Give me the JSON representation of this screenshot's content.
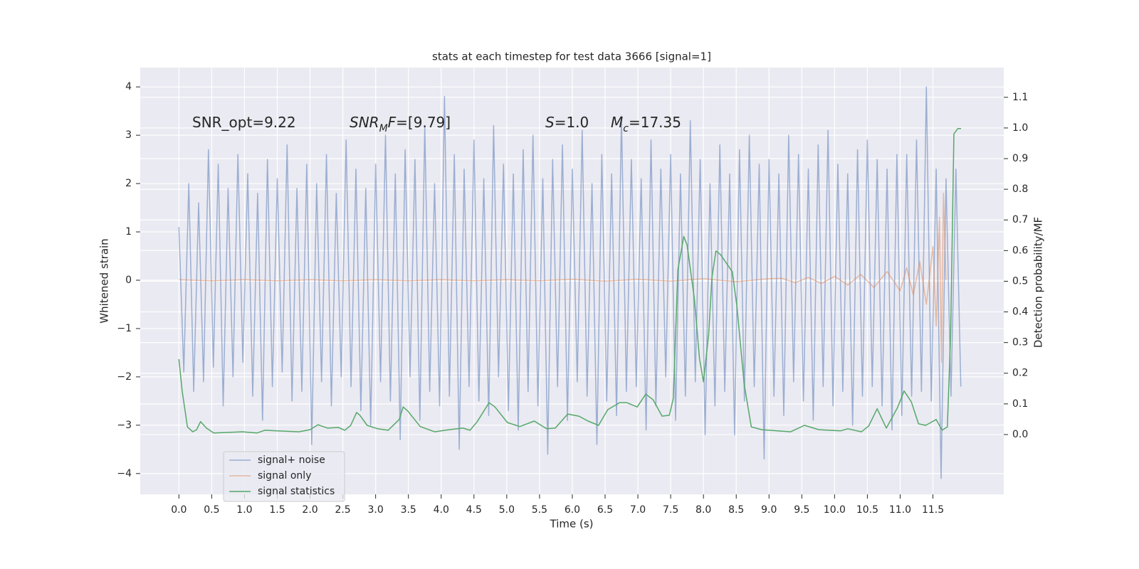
{
  "chart_data": {
    "type": "line",
    "title": "stats at each timestep for test data 3666 [signal=1]",
    "xlabel": "Time (s)",
    "ylabel": "Whitened strain",
    "y2label": "Detection probability/MF",
    "xlim": [
      -0.59,
      12.58
    ],
    "ylim": [
      -4.43,
      4.4
    ],
    "y2lim": [
      -0.195,
      1.197
    ],
    "xticks": [
      {
        "value": 0,
        "label": "0.0"
      },
      0.5,
      {
        "value": 1,
        "label": "1.0"
      },
      1.5,
      {
        "value": 2,
        "label": "2.0"
      },
      2.5,
      {
        "value": 3,
        "label": "3.0"
      },
      3.5,
      {
        "value": 4,
        "label": "4.0"
      },
      4.5,
      {
        "value": 5,
        "label": "5.0"
      },
      5.5,
      {
        "value": 6,
        "label": "6.0"
      },
      6.5,
      {
        "value": 7,
        "label": "7.0"
      },
      7.5,
      {
        "value": 8,
        "label": "8.0"
      },
      8.5,
      {
        "value": 9,
        "label": "9.0"
      },
      9.5,
      {
        "value": 10,
        "label": "10.0"
      },
      10.5,
      {
        "value": 11,
        "label": "11.0"
      },
      11.5
    ],
    "yticks": [
      {
        "value": -4,
        "label": "−4"
      },
      {
        "value": -3,
        "label": "−3"
      },
      {
        "value": -2,
        "label": "−2"
      },
      {
        "value": -1,
        "label": "−1"
      },
      0,
      1,
      2,
      3,
      4
    ],
    "y2ticks": [
      {
        "value": 0,
        "label": "0.0"
      },
      0.1,
      0.2,
      0.3,
      0.4,
      0.5,
      0.6,
      0.7,
      0.8,
      0.9,
      {
        "value": 1,
        "label": "1.0"
      },
      1.1
    ],
    "grid": true,
    "legend": "lower left",
    "annotations": [
      [
        {
          "text": "SNR_opt=9.22",
          "style": "normal"
        }
      ],
      [
        {
          "text": "SNR",
          "style": "italic"
        },
        {
          "text": "M",
          "style": "sub"
        },
        {
          "text": "F",
          "style": "italic"
        },
        {
          "text": "=[9.79]",
          "style": "normal"
        }
      ],
      [
        {
          "text": "S",
          "style": "italic"
        },
        {
          "text": "=1.0",
          "style": "normal"
        }
      ],
      [
        {
          "text": "M",
          "style": "italic"
        },
        {
          "text": "c",
          "style": "sub"
        },
        {
          "text": "=17.35",
          "style": "normal"
        }
      ]
    ],
    "series": [
      {
        "name": "signal+ noise",
        "color": "#4c72b0",
        "axis": "y",
        "x": [
          0,
          0.075,
          0.15,
          0.225,
          0.3,
          0.375,
          0.45,
          0.525,
          0.6,
          0.675,
          0.75,
          0.825,
          0.9,
          0.975,
          1.05,
          1.125,
          1.2,
          1.275,
          1.35,
          1.425,
          1.5,
          1.575,
          1.65,
          1.725,
          1.8,
          1.875,
          1.95,
          2.025,
          2.1,
          2.175,
          2.25,
          2.325,
          2.4,
          2.475,
          2.55,
          2.625,
          2.7,
          2.775,
          2.85,
          2.925,
          3.0,
          3.075,
          3.15,
          3.225,
          3.3,
          3.375,
          3.45,
          3.525,
          3.6,
          3.675,
          3.75,
          3.825,
          3.9,
          3.975,
          4.05,
          4.125,
          4.2,
          4.275,
          4.35,
          4.425,
          4.5,
          4.575,
          4.65,
          4.725,
          4.8,
          4.875,
          4.95,
          5.025,
          5.1,
          5.175,
          5.25,
          5.325,
          5.4,
          5.475,
          5.55,
          5.625,
          5.7,
          5.775,
          5.85,
          5.925,
          6.0,
          6.075,
          6.15,
          6.225,
          6.3,
          6.375,
          6.45,
          6.525,
          6.6,
          6.675,
          6.75,
          6.825,
          6.9,
          6.975,
          7.05,
          7.125,
          7.2,
          7.275,
          7.35,
          7.425,
          7.5,
          7.575,
          7.65,
          7.725,
          7.8,
          7.875,
          7.95,
          8.025,
          8.1,
          8.175,
          8.25,
          8.325,
          8.4,
          8.475,
          8.55,
          8.625,
          8.7,
          8.775,
          8.85,
          8.925,
          9.0,
          9.075,
          9.15,
          9.225,
          9.3,
          9.375,
          9.45,
          9.525,
          9.6,
          9.675,
          9.75,
          9.825,
          9.9,
          9.975,
          10.05,
          10.125,
          10.2,
          10.275,
          10.35,
          10.425,
          10.5,
          10.575,
          10.65,
          10.725,
          10.8,
          10.875,
          10.95,
          11.025,
          11.1,
          11.175,
          11.25,
          11.325,
          11.4,
          11.475,
          11.55,
          11.625,
          11.7,
          11.775,
          11.85,
          11.925
        ],
        "values": [
          1.1,
          -1.9,
          2.0,
          -2.3,
          1.6,
          -2.1,
          2.7,
          -1.8,
          2.4,
          -2.6,
          1.9,
          -2.0,
          2.6,
          -1.7,
          2.2,
          -2.4,
          1.8,
          -2.9,
          2.5,
          -2.2,
          2.1,
          -1.9,
          2.8,
          -2.5,
          1.9,
          -2.3,
          2.4,
          -3.4,
          2.0,
          -2.1,
          2.6,
          -2.6,
          1.8,
          -2.0,
          2.9,
          -2.2,
          2.3,
          -2.7,
          1.9,
          -3.0,
          2.4,
          -2.1,
          3.0,
          -2.5,
          2.2,
          -3.3,
          2.7,
          -2.0,
          2.5,
          -2.9,
          3.2,
          -2.3,
          2.0,
          -2.6,
          3.8,
          -2.4,
          2.6,
          -3.5,
          2.3,
          -2.2,
          2.9,
          -2.5,
          2.1,
          -2.8,
          3.2,
          -2.0,
          2.4,
          -2.7,
          2.2,
          -3.1,
          2.7,
          -2.3,
          3.0,
          -2.6,
          2.1,
          -3.6,
          2.5,
          -2.2,
          2.8,
          -2.9,
          2.3,
          -2.1,
          3.1,
          -2.4,
          2.0,
          -3.4,
          2.6,
          -2.5,
          2.2,
          -2.8,
          3.4,
          -2.3,
          2.5,
          -2.2,
          2.1,
          -3.1,
          2.9,
          -2.6,
          2.3,
          -2.0,
          2.6,
          -2.9,
          2.2,
          -2.4,
          3.3,
          -2.1,
          2.5,
          -3.2,
          2.0,
          -2.6,
          2.8,
          -2.3,
          2.2,
          -3.2,
          2.7,
          -2.5,
          3.0,
          -2.2,
          2.4,
          -3.7,
          2.5,
          -2.4,
          2.2,
          -2.8,
          3.0,
          -2.1,
          2.6,
          -2.5,
          2.3,
          -2.9,
          2.8,
          -2.2,
          3.1,
          -2.6,
          2.4,
          -2.3,
          2.2,
          -3.0,
          2.7,
          -2.4,
          2.9,
          -2.2,
          2.5,
          -2.6,
          2.3,
          -3.1,
          2.6,
          -2.8,
          2.6,
          -2.4,
          2.9,
          -2.3,
          4.0,
          -2.5,
          2.3,
          -4.1,
          2.1,
          -2.4,
          2.3,
          -2.2
        ]
      },
      {
        "name": "signal only",
        "color": "#dd8452",
        "axis": "y",
        "x": [
          0,
          0.5,
          1,
          1.5,
          2,
          2.5,
          3,
          3.5,
          4,
          4.5,
          5,
          5.5,
          6,
          6.5,
          7,
          7.5,
          8,
          8.5,
          9,
          9.2,
          9.4,
          9.6,
          9.8,
          10,
          10.2,
          10.4,
          10.6,
          10.8,
          11,
          11.1,
          11.2,
          11.3,
          11.4,
          11.5,
          11.55,
          11.6,
          11.63,
          11.66,
          11.7
        ],
        "values": [
          0.01,
          -0.01,
          0.01,
          -0.01,
          0.01,
          -0.01,
          0.01,
          -0.01,
          0.01,
          -0.01,
          0.01,
          -0.01,
          0.02,
          -0.02,
          0.02,
          -0.02,
          0.03,
          -0.03,
          0.03,
          0.04,
          -0.05,
          0.06,
          -0.07,
          0.08,
          -0.1,
          0.12,
          -0.15,
          0.18,
          -0.22,
          0.26,
          -0.3,
          0.38,
          -0.5,
          0.7,
          -0.95,
          1.3,
          -1.7,
          1.8,
          0.0
        ]
      },
      {
        "name": "signal statistics",
        "color": "#55a868",
        "axis": "y2",
        "x": [
          0,
          0.05,
          0.13,
          0.21,
          0.27,
          0.33,
          0.42,
          0.53,
          0.97,
          1.19,
          1.31,
          1.83,
          2.0,
          2.12,
          2.27,
          2.43,
          2.53,
          2.62,
          2.71,
          2.76,
          2.87,
          3.03,
          3.19,
          3.36,
          3.42,
          3.49,
          3.68,
          3.9,
          4.12,
          4.33,
          4.44,
          4.55,
          4.73,
          4.82,
          5.01,
          5.2,
          5.42,
          5.61,
          5.74,
          5.93,
          6.1,
          6.24,
          6.4,
          6.54,
          6.72,
          6.83,
          6.99,
          7.12,
          7.23,
          7.37,
          7.48,
          7.54,
          7.61,
          7.7,
          7.75,
          7.86,
          7.94,
          8.0,
          8.08,
          8.13,
          8.19,
          8.26,
          8.35,
          8.44,
          8.51,
          8.62,
          8.73,
          8.89,
          9.33,
          9.54,
          9.76,
          10.09,
          10.2,
          10.41,
          10.52,
          10.65,
          10.79,
          10.96,
          11.06,
          11.17,
          11.28,
          11.39,
          11.55,
          11.64,
          11.72,
          11.77,
          11.82,
          11.88,
          11.93
        ],
        "values": [
          0.246,
          0.142,
          0.025,
          0.009,
          0.016,
          0.042,
          0.021,
          0.005,
          0.009,
          0.005,
          0.014,
          0.009,
          0.016,
          0.032,
          0.021,
          0.023,
          0.014,
          0.03,
          0.072,
          0.063,
          0.03,
          0.019,
          0.014,
          0.049,
          0.09,
          0.077,
          0.026,
          0.009,
          0.016,
          0.021,
          0.014,
          0.042,
          0.104,
          0.09,
          0.039,
          0.026,
          0.044,
          0.019,
          0.021,
          0.067,
          0.06,
          0.044,
          0.03,
          0.081,
          0.104,
          0.104,
          0.09,
          0.132,
          0.114,
          0.06,
          0.063,
          0.118,
          0.537,
          0.646,
          0.619,
          0.445,
          0.248,
          0.172,
          0.327,
          0.513,
          0.599,
          0.587,
          0.559,
          0.531,
          0.42,
          0.165,
          0.025,
          0.016,
          0.009,
          0.03,
          0.016,
          0.012,
          0.019,
          0.009,
          0.028,
          0.084,
          0.021,
          0.088,
          0.142,
          0.107,
          0.035,
          0.03,
          0.049,
          0.014,
          0.025,
          0.327,
          0.981,
          0.998,
          0.998
        ]
      }
    ]
  }
}
